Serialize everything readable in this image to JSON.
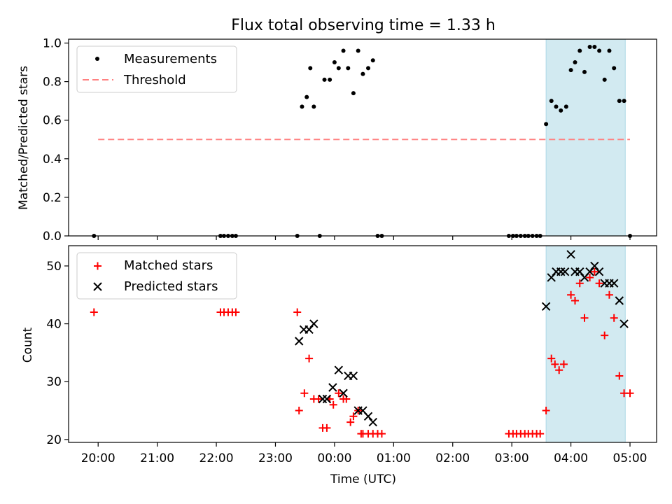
{
  "chart_data": [
    {
      "type": "scatter",
      "title": "Flux total observing time = 1.33 h",
      "xlabel": "",
      "ylabel": "Matched/Predicted stars",
      "ylim": [
        0,
        1.02
      ],
      "yticks": [
        "0.0",
        "0.2",
        "0.4",
        "0.6",
        "0.8",
        "1.0"
      ],
      "ytick_values": [
        0,
        0.2,
        0.4,
        0.6,
        0.8,
        1.0
      ],
      "legend_position": "top-left",
      "threshold": {
        "name": "Threshold",
        "value": 0.5,
        "x_start": -4.0,
        "x_end": 5.0,
        "color": "#ff8080"
      },
      "highlight_span": {
        "x_start": 3.58,
        "x_end": 4.92,
        "color": "#add8e6"
      },
      "series": [
        {
          "name": "Measurements",
          "color": "#000000",
          "x": [
            -4.07,
            -1.93,
            -1.87,
            -1.8,
            -1.73,
            -1.67,
            -0.63,
            -0.55,
            -0.47,
            -0.41,
            -0.35,
            -0.25,
            -0.17,
            -0.08,
            0.0,
            0.07,
            0.15,
            0.23,
            0.32,
            0.4,
            0.48,
            0.57,
            0.65,
            0.73,
            0.8,
            2.95,
            3.02,
            3.08,
            3.15,
            3.22,
            3.28,
            3.35,
            3.42,
            3.48,
            3.58,
            3.67,
            3.75,
            3.83,
            3.92,
            4.0,
            4.07,
            4.15,
            4.23,
            4.32,
            4.4,
            4.48,
            4.57,
            4.65,
            4.73,
            4.82,
            4.9,
            5.0
          ],
          "y": [
            0,
            0,
            0,
            0,
            0,
            0,
            0,
            0.67,
            0.72,
            0.87,
            0.67,
            0.0,
            0.81,
            0.81,
            0.9,
            0.87,
            0.96,
            0.87,
            0.74,
            0.96,
            0.84,
            0.87,
            0.91,
            0.0,
            0.0,
            0,
            0,
            0,
            0,
            0,
            0,
            0,
            0,
            0,
            0.58,
            0.7,
            0.67,
            0.65,
            0.67,
            0.86,
            0.9,
            0.96,
            0.85,
            0.98,
            0.98,
            0.96,
            0.81,
            0.96,
            0.87,
            0.7,
            0.7,
            0.0
          ]
        }
      ]
    },
    {
      "type": "scatter",
      "title": "",
      "xlabel": "Time (UTC)",
      "ylabel": "Count",
      "ylim": [
        19.5,
        53.5
      ],
      "yticks": [
        "20",
        "30",
        "40",
        "50"
      ],
      "ytick_values": [
        20,
        30,
        40,
        50
      ],
      "xlim": [
        -4.5,
        5.45
      ],
      "xticks": [
        "20:00",
        "21:00",
        "22:00",
        "23:00",
        "00:00",
        "01:00",
        "02:00",
        "03:00",
        "04:00",
        "05:00"
      ],
      "xtick_values": [
        -4,
        -3,
        -2,
        -1,
        0,
        1,
        2,
        3,
        4,
        5
      ],
      "legend_position": "top-left",
      "highlight_span": {
        "x_start": 3.58,
        "x_end": 4.92,
        "color": "#add8e6"
      },
      "series": [
        {
          "name": "Matched stars",
          "marker": "plus",
          "color": "#ff0000",
          "x": [
            -4.07,
            -1.93,
            -1.87,
            -1.8,
            -1.73,
            -1.67,
            -0.63,
            -0.6,
            -0.51,
            -0.43,
            -0.35,
            -0.27,
            -0.2,
            -0.13,
            -0.08,
            -0.02,
            0.07,
            0.15,
            0.2,
            0.27,
            0.32,
            0.4,
            0.45,
            0.48,
            0.57,
            0.65,
            0.73,
            0.8,
            2.95,
            3.02,
            3.08,
            3.15,
            3.22,
            3.28,
            3.35,
            3.42,
            3.48,
            3.58,
            3.67,
            3.73,
            3.8,
            3.88,
            4.0,
            4.07,
            4.15,
            4.23,
            4.32,
            4.4,
            4.48,
            4.57,
            4.65,
            4.73,
            4.82,
            4.9,
            5.0
          ],
          "y": [
            42,
            42,
            42,
            42,
            42,
            42,
            42,
            25,
            28,
            34,
            27,
            27,
            22,
            22,
            27,
            26,
            28,
            27,
            27,
            23,
            24,
            25,
            21,
            21,
            21,
            21,
            21,
            21,
            21,
            21,
            21,
            21,
            21,
            21,
            21,
            21,
            21,
            25,
            34,
            33,
            32,
            33,
            45,
            44,
            47,
            41,
            48,
            49,
            47,
            38,
            45,
            41,
            31,
            28,
            28
          ]
        },
        {
          "name": "Predicted stars",
          "marker": "x",
          "color": "#000000",
          "x": [
            -0.6,
            -0.52,
            -0.43,
            -0.35,
            -0.2,
            -0.13,
            -0.03,
            0.07,
            0.15,
            0.23,
            0.32,
            0.4,
            0.48,
            0.57,
            0.65,
            3.58,
            3.67,
            3.75,
            3.83,
            3.9,
            4.0,
            4.07,
            4.15,
            4.23,
            4.32,
            4.4,
            4.48,
            4.57,
            4.65,
            4.73,
            4.82,
            4.9
          ],
          "y": [
            37,
            39,
            39,
            40,
            27,
            27,
            29,
            32,
            28,
            31,
            31,
            25,
            25,
            24,
            23,
            43,
            48,
            49,
            49,
            49,
            52,
            49,
            49,
            48,
            49,
            50,
            49,
            47,
            47,
            47,
            44,
            40
          ]
        }
      ]
    }
  ]
}
